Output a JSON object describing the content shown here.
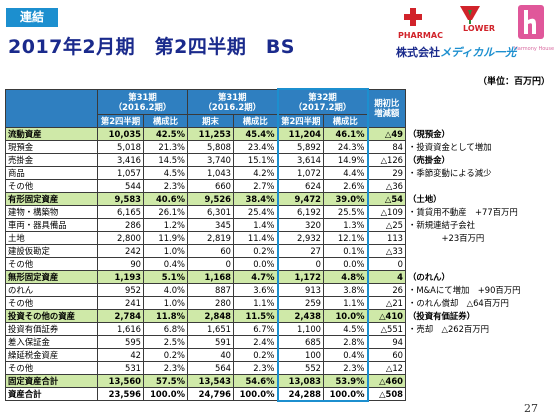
{
  "header": {
    "badge": "連結",
    "title": "2017年2月期　第2四半期　BS",
    "brand_pharmac": "PHARMAC",
    "brand_lower": "LOWER",
    "brand_harmony": "Harmony House",
    "company_prefix": "株式会社",
    "company_name": "メディカル一光",
    "unit": "（単位：百万円）"
  },
  "table": {
    "period_headers": [
      {
        "line1": "第31期",
        "line2": "（2016.2期）"
      },
      {
        "line1": "第31期",
        "line2": "（2016.2期）"
      },
      {
        "line1": "第32期",
        "line2": "（2017.2期）"
      }
    ],
    "change_header": {
      "line1": "期初比",
      "line2": "増減額"
    },
    "sub_headers": [
      "第2四半期",
      "構成比",
      "期末",
      "構成比",
      "第2四半期",
      "構成比"
    ],
    "rows": [
      {
        "kind": "sec",
        "label": "流動資産",
        "v": [
          "10,035",
          "42.5%",
          "11,253",
          "45.4%",
          "11,204",
          "46.1%",
          "△49"
        ],
        "note": "（現預金）"
      },
      {
        "kind": "item",
        "label": "現預金",
        "v": [
          "5,018",
          "21.3%",
          "5,808",
          "23.4%",
          "5,892",
          "24.3%",
          "84"
        ],
        "note": "・投資資金として増加"
      },
      {
        "kind": "item",
        "label": "売掛金",
        "v": [
          "3,416",
          "14.5%",
          "3,740",
          "15.1%",
          "3,614",
          "14.9%",
          "△126"
        ],
        "note": "（売掛金）"
      },
      {
        "kind": "item",
        "label": "商品",
        "v": [
          "1,057",
          "4.5%",
          "1,043",
          "4.2%",
          "1,072",
          "4.4%",
          "29"
        ],
        "note": "・季節変動による減少"
      },
      {
        "kind": "item",
        "label": "その他",
        "v": [
          "544",
          "2.3%",
          "660",
          "2.7%",
          "624",
          "2.6%",
          "△36"
        ],
        "note": ""
      },
      {
        "kind": "sec",
        "label": "有形固定資産",
        "v": [
          "9,583",
          "40.6%",
          "9,526",
          "38.4%",
          "9,472",
          "39.0%",
          "△54"
        ],
        "note": "（土地）"
      },
      {
        "kind": "item",
        "label": "建物・構築物",
        "v": [
          "6,165",
          "26.1%",
          "6,301",
          "25.4%",
          "6,192",
          "25.5%",
          "△109"
        ],
        "note": "・賃貸用不動産　+77百万円"
      },
      {
        "kind": "item",
        "label": "車両・器具備品",
        "v": [
          "286",
          "1.2%",
          "345",
          "1.4%",
          "320",
          "1.3%",
          "△25"
        ],
        "note": "・新規連結子会社"
      },
      {
        "kind": "item",
        "label": "土地",
        "v": [
          "2,800",
          "11.9%",
          "2,819",
          "11.4%",
          "2,932",
          "12.1%",
          "113"
        ],
        "note": "　　　　+23百万円"
      },
      {
        "kind": "item",
        "label": "建設仮勘定",
        "v": [
          "242",
          "1.0%",
          "60",
          "0.2%",
          "27",
          "0.1%",
          "△33"
        ],
        "note": ""
      },
      {
        "kind": "item",
        "label": "その他",
        "v": [
          "90",
          "0.4%",
          "0",
          "0.0%",
          "0",
          "0.0%",
          "0"
        ],
        "note": ""
      },
      {
        "kind": "sec",
        "label": "無形固定資産",
        "v": [
          "1,193",
          "5.1%",
          "1,168",
          "4.7%",
          "1,172",
          "4.8%",
          "4"
        ],
        "note": "（のれん）"
      },
      {
        "kind": "item",
        "label": "のれん",
        "v": [
          "952",
          "4.0%",
          "887",
          "3.6%",
          "913",
          "3.8%",
          "26"
        ],
        "note": "・M&Aにて増加　+90百万円"
      },
      {
        "kind": "item",
        "label": "その他",
        "v": [
          "241",
          "1.0%",
          "280",
          "1.1%",
          "259",
          "1.1%",
          "△21"
        ],
        "note": "・のれん償却　△64百万円"
      },
      {
        "kind": "sec",
        "label": "投資その他の資産",
        "v": [
          "2,784",
          "11.8%",
          "2,848",
          "11.5%",
          "2,438",
          "10.0%",
          "△410"
        ],
        "note": "（投資有価証券）"
      },
      {
        "kind": "item",
        "label": "投資有価証券",
        "v": [
          "1,616",
          "6.8%",
          "1,651",
          "6.7%",
          "1,100",
          "4.5%",
          "△551"
        ],
        "note": "・売却　△262百万円"
      },
      {
        "kind": "item",
        "label": "差入保証金",
        "v": [
          "595",
          "2.5%",
          "591",
          "2.4%",
          "685",
          "2.8%",
          "94"
        ],
        "note": ""
      },
      {
        "kind": "item",
        "label": "繰延税金資産",
        "v": [
          "42",
          "0.2%",
          "40",
          "0.2%",
          "100",
          "0.4%",
          "60"
        ],
        "note": ""
      },
      {
        "kind": "item",
        "label": "その他",
        "v": [
          "531",
          "2.3%",
          "564",
          "2.3%",
          "552",
          "2.3%",
          "△12"
        ],
        "note": ""
      },
      {
        "kind": "total",
        "label": "固定資産合計",
        "v": [
          "13,560",
          "57.5%",
          "13,543",
          "54.6%",
          "13,083",
          "53.9%",
          "△460"
        ],
        "note": ""
      },
      {
        "kind": "grand",
        "label": "資産合計",
        "v": [
          "23,596",
          "100.0%",
          "24,796",
          "100.0%",
          "24,288",
          "100.0%",
          "△508"
        ],
        "note": ""
      }
    ]
  },
  "footer": {
    "page_number": "27"
  },
  "colors": {
    "header_blue": "#2f7fc0",
    "section_green": "#cfe9a8",
    "title_navy": "#1a2a8c",
    "badge_blue": "#1c8fcf",
    "brand_red": "#d1232a"
  }
}
